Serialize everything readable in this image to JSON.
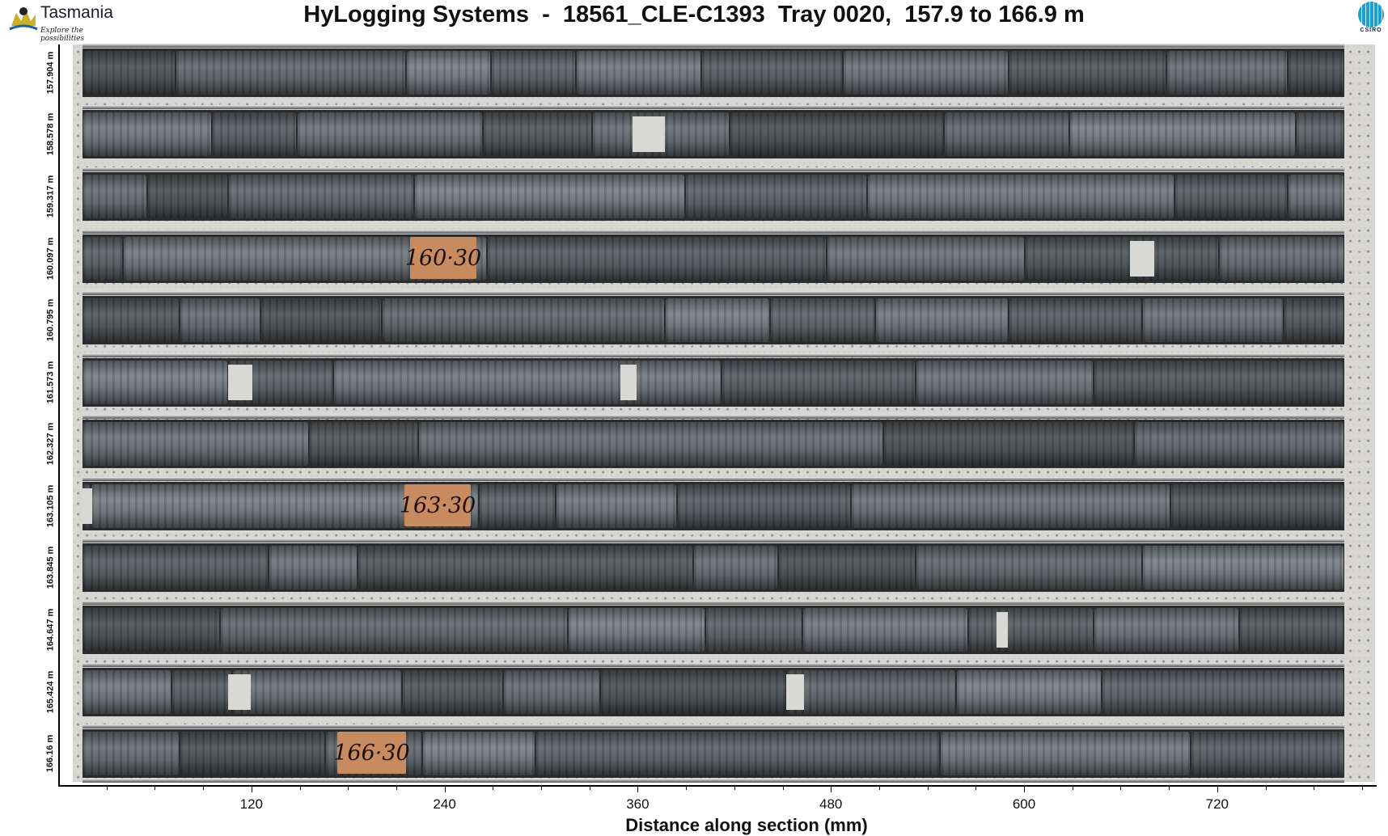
{
  "header": {
    "title": "HyLogging Systems  -  18561_CLE-C1393  Tray 0020,  157.9 to 166.9 m",
    "left_logo": {
      "name": "Tasmania",
      "tagline": "Explore the possibilities"
    },
    "right_logo": {
      "name": "CSIRO"
    }
  },
  "colors": {
    "core": "#5a6064",
    "tray": "#d9d7d2",
    "depth_block": "#c88b5f",
    "csiro_blue": "#1aa0d8"
  },
  "rows": [
    {
      "depth_label": "157.904 m"
    },
    {
      "depth_label": "158.578 m"
    },
    {
      "depth_label": "159.317 m"
    },
    {
      "depth_label": "160.097 m"
    },
    {
      "depth_label": "160.795 m"
    },
    {
      "depth_label": "161.573 m"
    },
    {
      "depth_label": "162.327 m"
    },
    {
      "depth_label": "163.105 m"
    },
    {
      "depth_label": "163.845 m"
    },
    {
      "depth_label": "164.647 m"
    },
    {
      "depth_label": "165.424 m"
    },
    {
      "depth_label": "166.16 m"
    }
  ],
  "depth_blocks": [
    {
      "row": 3,
      "text": "160·30"
    },
    {
      "row": 7,
      "text": "163·30"
    },
    {
      "row": 11,
      "text": "166·30"
    }
  ],
  "x_axis": {
    "label": "Distance along section (mm)",
    "major_ticks": [
      120,
      240,
      360,
      480,
      600,
      720
    ],
    "minor_step": 30,
    "range": [
      0,
      818
    ]
  }
}
